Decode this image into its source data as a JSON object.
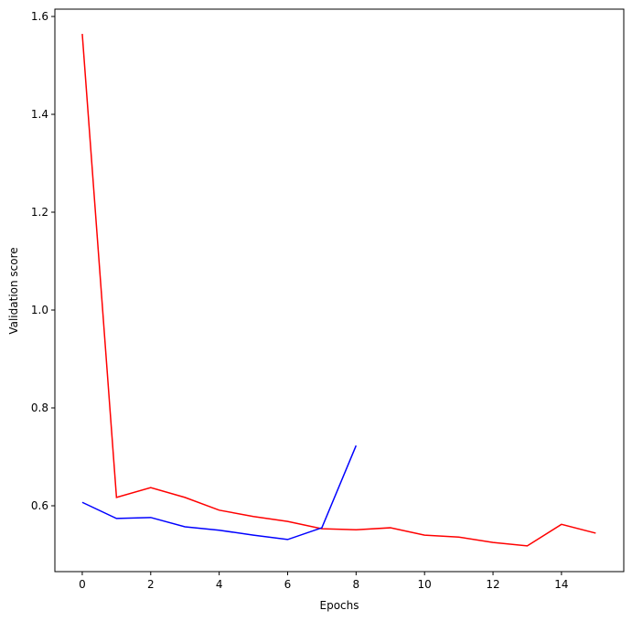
{
  "chart_data": {
    "type": "line",
    "xlabel": "Epochs",
    "ylabel": "Validation score",
    "x": [
      0,
      1,
      2,
      3,
      4,
      5,
      6,
      7,
      8,
      9,
      10,
      11,
      12,
      13,
      14,
      15
    ],
    "series": [
      {
        "color": "#ff0000",
        "values": [
          1.5645,
          0.617,
          0.637,
          0.617,
          0.591,
          0.578,
          0.568,
          0.553,
          0.551,
          0.555,
          0.54,
          0.536,
          0.525,
          0.518,
          0.562,
          0.544
        ]
      },
      {
        "color": "#0000ff",
        "values": [
          0.607,
          0.574,
          0.576,
          0.557,
          0.55,
          0.54,
          0.531,
          0.555,
          0.723,
          null,
          null,
          null,
          null,
          null,
          null,
          null
        ]
      }
    ],
    "xlim": [
      -0.8,
      15.82
    ],
    "ylim": [
      0.4654,
      1.615
    ],
    "xticks": [
      0,
      2,
      4,
      6,
      8,
      10,
      12,
      14
    ],
    "yticks": [
      0.6,
      0.8,
      {
        "value": 1,
        "label": "1.0"
      },
      1.2,
      1.4,
      1.6
    ],
    "grid": false
  }
}
